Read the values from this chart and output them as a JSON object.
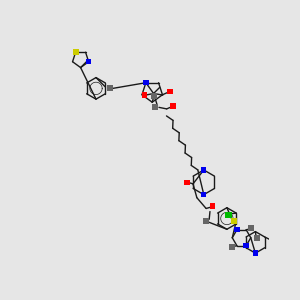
{
  "bg": "#e6e6e6",
  "bc": "#1a1a1a",
  "N": "#0000ee",
  "O": "#ff0000",
  "S": "#cccc00",
  "Cl": "#00bb00",
  "NH": "#666666",
  "NH2": "#666666"
}
